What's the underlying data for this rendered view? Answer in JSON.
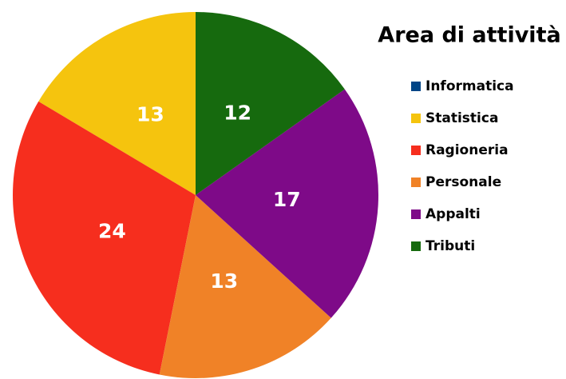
{
  "chart_data": {
    "type": "pie",
    "title": "Area di attività",
    "categories": [
      "Informatica",
      "Statistica",
      "Ragioneria",
      "Personale",
      "Appalti",
      "Tributi"
    ],
    "values": [
      0,
      13,
      24,
      13,
      17,
      12
    ],
    "colors": [
      "#004586",
      "#f5c40e",
      "#f62e1e",
      "#f08227",
      "#7e0a88",
      "#166a0e"
    ],
    "direction": "counterclockwise",
    "legend": "right"
  }
}
